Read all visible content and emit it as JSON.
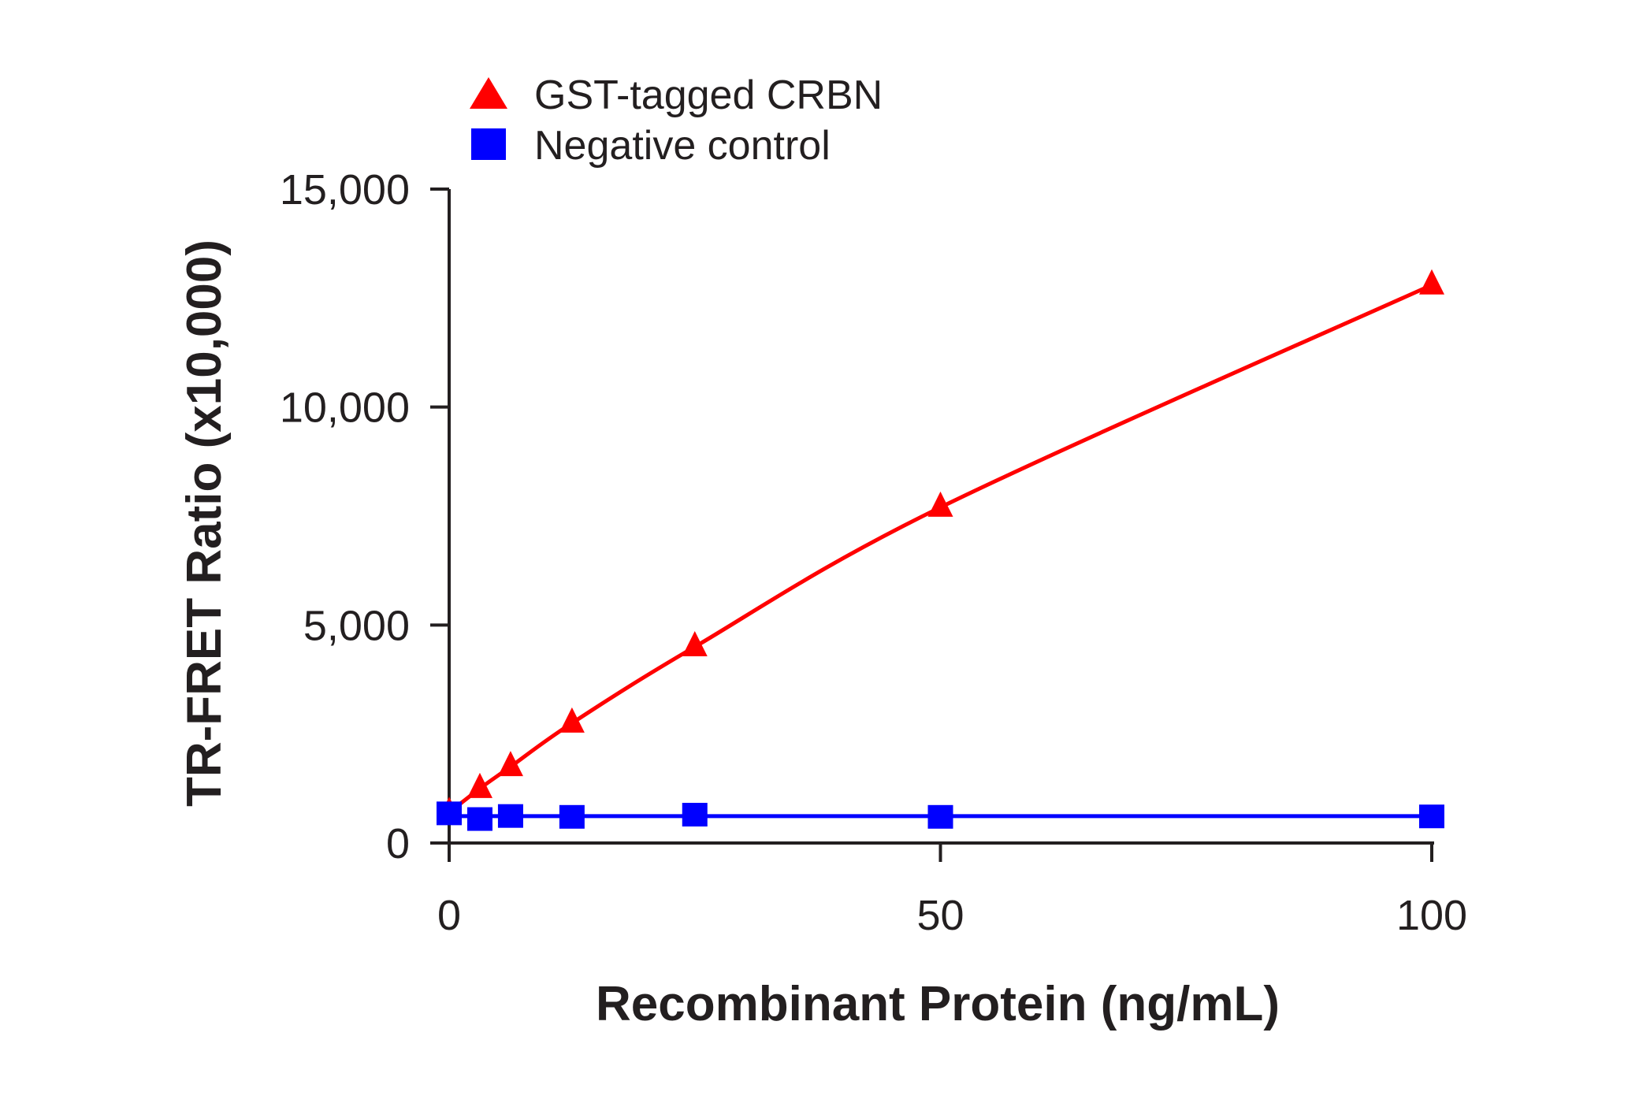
{
  "chart_data": {
    "type": "line",
    "title": "",
    "xlabel": "Recombinant Protein (ng/mL)",
    "ylabel": "TR-FRET Ratio (x10,000)",
    "xlim": [
      0,
      100
    ],
    "ylim": [
      0,
      15000
    ],
    "xticks": [
      0,
      50,
      100
    ],
    "xtick_labels": [
      "0",
      "50",
      "100"
    ],
    "yticks": [
      0,
      5000,
      10000,
      15000
    ],
    "ytick_labels": [
      "0",
      "5,000",
      "10,000",
      "15,000"
    ],
    "grid": false,
    "legend_position": "top-left",
    "series": [
      {
        "name": "GST-tagged CRBN",
        "color": "#ff0000",
        "marker": "triangle",
        "x": [
          0,
          3.125,
          6.25,
          12.5,
          25,
          50,
          100
        ],
        "y": [
          700,
          1250,
          1750,
          2750,
          4500,
          7700,
          12800
        ]
      },
      {
        "name": "Negative control",
        "color": "#0000ff",
        "marker": "square",
        "x": [
          0,
          3.125,
          6.25,
          12.5,
          25,
          50,
          100
        ],
        "y": [
          680,
          550,
          620,
          600,
          650,
          600,
          610
        ]
      }
    ]
  }
}
